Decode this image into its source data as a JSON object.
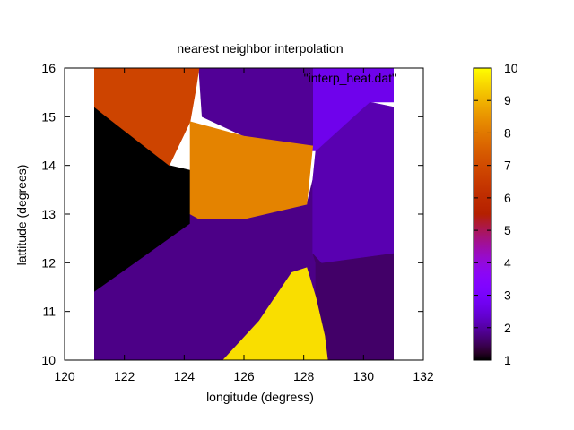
{
  "chart_data": {
    "type": "heatmap",
    "title": "nearest neighbor interpolation",
    "legend_label": "\"interp_heat.dat\"",
    "xlabel": "longitude (degress)",
    "ylabel": "lattitude (degrees)",
    "xlim": [
      120,
      132
    ],
    "ylim": [
      10,
      16
    ],
    "data_extent": {
      "x": [
        121,
        131
      ],
      "y": [
        10,
        16
      ]
    },
    "x_ticks": [
      120,
      122,
      124,
      126,
      128,
      130,
      132
    ],
    "y_ticks": [
      10,
      11,
      12,
      13,
      14,
      15,
      16
    ],
    "colorbar": {
      "range": [
        1,
        10
      ],
      "ticks": [
        1,
        2,
        3,
        4,
        5,
        6,
        7,
        8,
        9,
        10
      ],
      "palette": "gnuplot-pm3d-rgbformulae-7-5-15"
    },
    "grid": false,
    "regions": [
      {
        "value": 1.0,
        "polygon": [
          [
            121,
            15.2
          ],
          [
            121.4,
            15.0
          ],
          [
            123.5,
            14.0
          ],
          [
            124.2,
            13.9
          ],
          [
            124.2,
            12.8
          ],
          [
            121,
            11.4
          ]
        ]
      },
      {
        "value": 1.8,
        "polygon": [
          [
            121,
            11.4
          ],
          [
            124.2,
            12.8
          ],
          [
            124.2,
            13.0
          ],
          [
            124.5,
            12.9
          ],
          [
            126,
            12.9
          ],
          [
            128.1,
            13.2
          ],
          [
            128.3,
            13.7
          ],
          [
            128.3,
            12.2
          ],
          [
            128.4,
            12.0
          ],
          [
            128.4,
            10
          ],
          [
            121,
            10
          ]
        ]
      },
      {
        "value": 1.6,
        "polygon": [
          [
            128.3,
            12.2
          ],
          [
            128.6,
            12.0
          ],
          [
            131,
            12.2
          ],
          [
            131,
            10
          ],
          [
            128.4,
            10
          ],
          [
            128.4,
            12.0
          ]
        ]
      },
      {
        "value": 2.1,
        "polygon": [
          [
            128.3,
            13.7
          ],
          [
            128.4,
            14.3
          ],
          [
            130.2,
            15.3
          ],
          [
            131,
            15.2
          ],
          [
            131,
            12.2
          ],
          [
            128.6,
            12.0
          ],
          [
            128.3,
            12.2
          ]
        ]
      },
      {
        "value": 2.7,
        "polygon": [
          [
            128.3,
            14.3
          ],
          [
            128.3,
            16
          ],
          [
            131,
            16
          ],
          [
            131,
            15.3
          ],
          [
            130.2,
            15.3
          ],
          [
            128.4,
            14.3
          ]
        ]
      },
      {
        "value": 1.9,
        "polygon": [
          [
            124.5,
            16
          ],
          [
            128.3,
            16
          ],
          [
            128.3,
            14.4
          ],
          [
            126,
            14.6
          ],
          [
            124.6,
            15.0
          ],
          [
            124.5,
            15.9
          ]
        ]
      },
      {
        "value": 6.8,
        "polygon": [
          [
            121,
            16
          ],
          [
            124.5,
            16
          ],
          [
            124.4,
            15.6
          ],
          [
            124.2,
            14.9
          ],
          [
            123.5,
            14.0
          ],
          [
            121.4,
            15.0
          ],
          [
            121,
            15.2
          ]
        ]
      },
      {
        "value": 8.2,
        "polygon": [
          [
            124.2,
            14.9
          ],
          [
            126,
            14.6
          ],
          [
            128.3,
            14.4
          ],
          [
            128.1,
            13.2
          ],
          [
            126,
            12.9
          ],
          [
            124.5,
            12.9
          ],
          [
            124.2,
            13.0
          ]
        ]
      },
      {
        "value": 9.6,
        "polygon": [
          [
            125.3,
            10
          ],
          [
            126.5,
            10.8
          ],
          [
            127.6,
            11.8
          ],
          [
            128.1,
            11.9
          ],
          [
            128.4,
            11.3
          ],
          [
            128.7,
            10.5
          ],
          [
            128.8,
            10
          ]
        ]
      }
    ]
  }
}
